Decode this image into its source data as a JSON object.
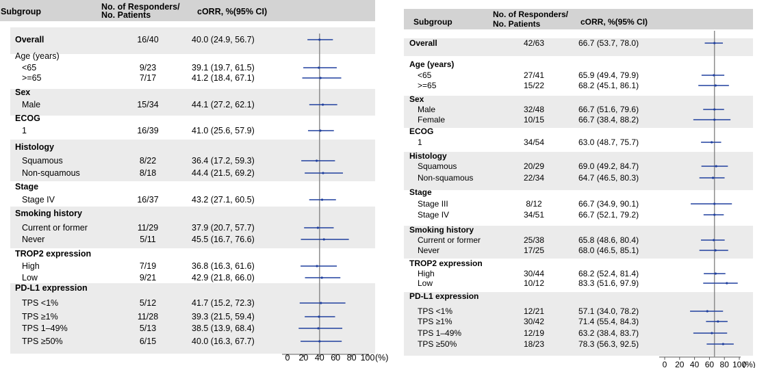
{
  "chart_data": [
    {
      "type": "forest",
      "columns": {
        "subgroup": "Subgroup",
        "responders": "No. of Responders/\nNo. Patients",
        "corr": "cORR, %(95% CI)"
      },
      "x_ticks": [
        "0",
        "20",
        "40",
        "60",
        "80",
        "100"
      ],
      "x_unit": "(%)",
      "xlim": [
        0,
        100
      ],
      "reference_line": 40,
      "rows": [
        {
          "label": "Overall",
          "header": true,
          "n": "16/40",
          "est": "40.0 (24.9, 56.7)",
          "value": 40.0,
          "lo": 24.9,
          "hi": 56.7
        },
        {
          "label": "Age (years)",
          "header": true,
          "plain": true
        },
        {
          "label": "<65",
          "n": "9/23",
          "est": "39.1 (19.7, 61.5)",
          "value": 39.1,
          "lo": 19.7,
          "hi": 61.5
        },
        {
          "label": ">=65",
          "n": "7/17",
          "est": "41.2 (18.4, 67.1)",
          "value": 41.2,
          "lo": 18.4,
          "hi": 67.1
        },
        {
          "label": "Sex",
          "header": true
        },
        {
          "label": "Male",
          "n": "15/34",
          "est": "44.1 (27.2, 62.1)",
          "value": 44.1,
          "lo": 27.2,
          "hi": 62.1
        },
        {
          "label": "ECOG",
          "header": true
        },
        {
          "label": "1",
          "n": "16/39",
          "est": "41.0 (25.6, 57.9)",
          "value": 41.0,
          "lo": 25.6,
          "hi": 57.9
        },
        {
          "label": "Histology",
          "header": true
        },
        {
          "label": "Squamous",
          "n": "8/22",
          "est": "36.4 (17.2, 59.3)",
          "value": 36.4,
          "lo": 17.2,
          "hi": 59.3
        },
        {
          "label": "Non-squamous",
          "n": "8/18",
          "est": "44.4 (21.5, 69.2)",
          "value": 44.4,
          "lo": 21.5,
          "hi": 69.2
        },
        {
          "label": "Stage",
          "header": true
        },
        {
          "label": "Stage IV",
          "n": "16/37",
          "est": "43.2 (27.1, 60.5)",
          "value": 43.2,
          "lo": 27.1,
          "hi": 60.5
        },
        {
          "label": "Smoking history",
          "header": true
        },
        {
          "label": "Current or former",
          "n": "11/29",
          "est": "37.9 (20.7, 57.7)",
          "value": 37.9,
          "lo": 20.7,
          "hi": 57.7
        },
        {
          "label": "Never",
          "n": "5/11",
          "est": "45.5 (16.7, 76.6)",
          "value": 45.5,
          "lo": 16.7,
          "hi": 76.6
        },
        {
          "label": "TROP2 expression",
          "header": true
        },
        {
          "label": "High",
          "n": "7/19",
          "est": "36.8 (16.3, 61.6)",
          "value": 36.8,
          "lo": 16.3,
          "hi": 61.6
        },
        {
          "label": "Low",
          "n": "9/21",
          "est": "42.9 (21.8, 66.0)",
          "value": 42.9,
          "lo": 21.8,
          "hi": 66.0
        },
        {
          "label": "PD-L1 expression",
          "header": true
        },
        {
          "label": "TPS <1%",
          "n": "5/12",
          "est": "41.7 (15.2, 72.3)",
          "value": 41.7,
          "lo": 15.2,
          "hi": 72.3
        },
        {
          "label": "TPS ≥1%",
          "n": "11/28",
          "est": "39.3 (21.5, 59.4)",
          "value": 39.3,
          "lo": 21.5,
          "hi": 59.4
        },
        {
          "label": "TPS 1–49%",
          "n": "5/13",
          "est": "38.5 (13.9, 68.4)",
          "value": 38.5,
          "lo": 13.9,
          "hi": 68.4
        },
        {
          "label": "TPS ≥50%",
          "n": "6/15",
          "est": "40.0 (16.3, 67.7)",
          "value": 40.0,
          "lo": 16.3,
          "hi": 67.7
        }
      ]
    },
    {
      "type": "forest",
      "columns": {
        "subgroup": "Subgroup",
        "responders": "No. of Responders/\nNo. Patients",
        "corr": "cORR, %(95% CI)"
      },
      "x_ticks": [
        "0",
        "20",
        "40",
        "60",
        "80",
        "100"
      ],
      "x_unit": "(%)",
      "xlim": [
        0,
        100
      ],
      "reference_line": 66.7,
      "rows": [
        {
          "label": "Overall",
          "header": true,
          "n": "42/63",
          "est": "66.7 (53.7, 78.0)",
          "value": 66.7,
          "lo": 53.7,
          "hi": 78.0
        },
        {
          "label": "Age (years)",
          "header": true
        },
        {
          "label": "<65",
          "n": "27/41",
          "est": "65.9 (49.4, 79.9)",
          "value": 65.9,
          "lo": 49.4,
          "hi": 79.9
        },
        {
          "label": ">=65",
          "n": "15/22",
          "est": "68.2 (45.1, 86.1)",
          "value": 68.2,
          "lo": 45.1,
          "hi": 86.1
        },
        {
          "label": "Sex",
          "header": true
        },
        {
          "label": "Male",
          "n": "32/48",
          "est": "66.7 (51.6, 79.6)",
          "value": 66.7,
          "lo": 51.6,
          "hi": 79.6
        },
        {
          "label": "Female",
          "n": "10/15",
          "est": "66.7 (38.4, 88.2)",
          "value": 66.7,
          "lo": 38.4,
          "hi": 88.2
        },
        {
          "label": "ECOG",
          "header": true
        },
        {
          "label": "1",
          "n": "34/54",
          "est": "63.0 (48.7, 75.7)",
          "value": 63.0,
          "lo": 48.7,
          "hi": 75.7
        },
        {
          "label": "Histology",
          "header": true
        },
        {
          "label": "Squamous",
          "n": "20/29",
          "est": "69.0 (49.2, 84.7)",
          "value": 69.0,
          "lo": 49.2,
          "hi": 84.7
        },
        {
          "label": "Non-squamous",
          "n": "22/34",
          "est": "64.7 (46.5, 80.3)",
          "value": 64.7,
          "lo": 46.5,
          "hi": 80.3
        },
        {
          "label": "Stage",
          "header": true
        },
        {
          "label": "Stage III",
          "n": "8/12",
          "est": "66.7 (34.9, 90.1)",
          "value": 66.7,
          "lo": 34.9,
          "hi": 90.1
        },
        {
          "label": "Stage IV",
          "n": "34/51",
          "est": "66.7 (52.1, 79.2)",
          "value": 66.7,
          "lo": 52.1,
          "hi": 79.2
        },
        {
          "label": "Smoking history",
          "header": true
        },
        {
          "label": "Current or former",
          "n": "25/38",
          "est": "65.8 (48.6, 80.4)",
          "value": 65.8,
          "lo": 48.6,
          "hi": 80.4
        },
        {
          "label": "Never",
          "n": "17/25",
          "est": "68.0 (46.5, 85.1)",
          "value": 68.0,
          "lo": 46.5,
          "hi": 85.1
        },
        {
          "label": "TROP2 expression",
          "header": true
        },
        {
          "label": "High",
          "n": "30/44",
          "est": "68.2 (52.4, 81.4)",
          "value": 68.2,
          "lo": 52.4,
          "hi": 81.4
        },
        {
          "label": "Low",
          "n": "10/12",
          "est": "83.3 (51.6, 97.9)",
          "value": 83.3,
          "lo": 51.6,
          "hi": 97.9
        },
        {
          "label": "PD-L1 expression",
          "header": true
        },
        {
          "label": "TPS <1%",
          "n": "12/21",
          "est": "57.1 (34.0, 78.2)",
          "value": 57.1,
          "lo": 34.0,
          "hi": 78.2
        },
        {
          "label": "TPS ≥1%",
          "n": "30/42",
          "est": "71.4 (55.4, 84.3)",
          "value": 71.4,
          "lo": 55.4,
          "hi": 84.3
        },
        {
          "label": "TPS 1–49%",
          "n": "12/19",
          "est": "63.2 (38.4, 83.7)",
          "value": 63.2,
          "lo": 38.4,
          "hi": 83.7
        },
        {
          "label": "TPS ≥50%",
          "n": "18/23",
          "est": "78.3 (56.3, 92.5)",
          "value": 78.3,
          "lo": 56.3,
          "hi": 92.5
        }
      ]
    }
  ],
  "colors": {
    "ci_line": "#1f3f9e",
    "band": "#ebebeb",
    "header_band": "#d3d3d3",
    "ref_line": "#8c8c8c"
  }
}
